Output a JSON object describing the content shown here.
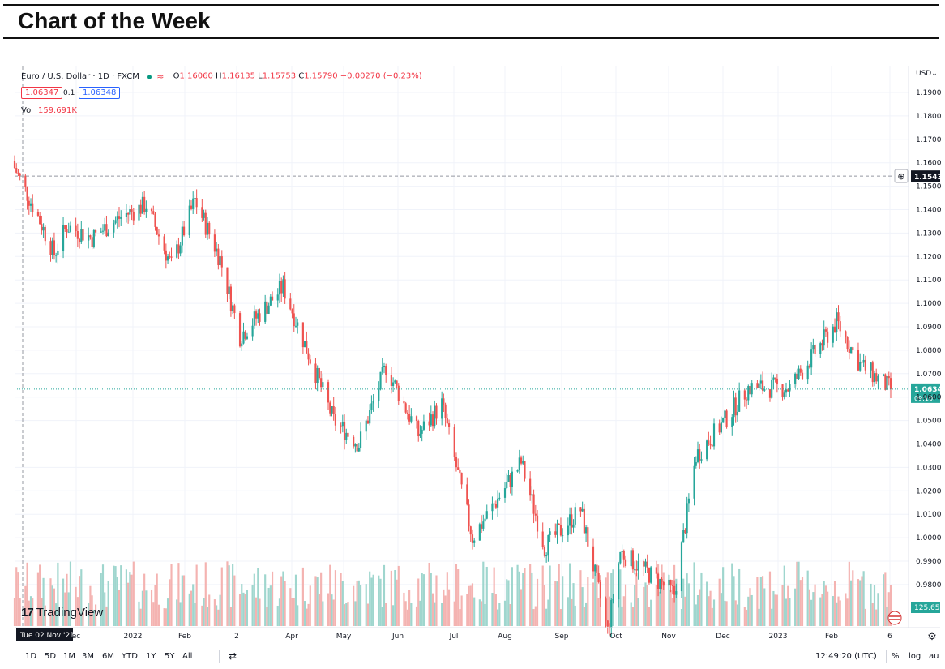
{
  "page_title": "Chart of the Week",
  "symbol": {
    "name": "Euro / U.S. Dollar · 1D · FXCM",
    "ohlc": {
      "o": "1.16060",
      "h": "1.16135",
      "l": "1.15753",
      "c": "1.15790",
      "chg": "−0.00270 (−0.23%)"
    },
    "bid": "1.06347",
    "spread": "0.1",
    "ask": "1.06348",
    "vol_label": "Vol",
    "vol_value": "159.691K"
  },
  "currency": "USD",
  "price_axis": {
    "min": 0.97,
    "max": 1.19,
    "ticks": [
      "1.1900",
      "1.1800",
      "1.1700",
      "1.1600",
      "1.1500",
      "1.1400",
      "1.1300",
      "1.1200",
      "1.1100",
      "1.1000",
      "1.0900",
      "1.0800",
      "1.0700",
      "1.0600",
      "1.0500",
      "1.0400",
      "1.0300",
      "1.0200",
      "1.0100",
      "1.0000",
      "0.9900",
      "0.9800"
    ]
  },
  "crosshair": {
    "price": "1.1543",
    "date": "Tue 02 Nov '21",
    "price_value": 1.1543
  },
  "last_price": {
    "price": "1.0634",
    "countdown": "09:10:",
    "value": 1.0634
  },
  "volume_tag": "125.65",
  "time_axis": [
    "ec",
    "2022",
    "Feb",
    "2",
    "Apr",
    "May",
    "Jun",
    "Jul",
    "Aug",
    "Sep",
    "Oct",
    "Nov",
    "Dec",
    "2023",
    "Feb",
    "6"
  ],
  "chart_data": {
    "type": "candlestick",
    "x": [
      "2021-11-02",
      "2021-11-15",
      "2021-11-24",
      "2021-12-01",
      "2021-12-15",
      "2021-12-31",
      "2022-01-14",
      "2022-01-28",
      "2022-02-10",
      "2022-02-24",
      "2022-03-07",
      "2022-03-31",
      "2022-04-28",
      "2022-05-12",
      "2022-05-27",
      "2022-06-14",
      "2022-06-27",
      "2022-07-14",
      "2022-08-10",
      "2022-08-23",
      "2022-09-12",
      "2022-09-27",
      "2022-10-04",
      "2022-10-21",
      "2022-11-03",
      "2022-11-15",
      "2022-12-01",
      "2022-12-14",
      "2023-01-06",
      "2023-02-01",
      "2023-02-14",
      "2023-03-03"
    ],
    "close": [
      1.1579,
      1.137,
      1.121,
      1.133,
      1.128,
      1.137,
      1.142,
      1.116,
      1.144,
      1.119,
      1.086,
      1.107,
      1.05,
      1.04,
      1.073,
      1.044,
      1.057,
      1.0,
      1.032,
      0.996,
      1.012,
      0.96,
      0.994,
      0.984,
      0.976,
      1.035,
      1.05,
      1.064,
      1.064,
      1.092,
      1.074,
      1.0634
    ],
    "ylim": [
      0.97,
      1.19
    ],
    "xlabel": "",
    "ylabel": ""
  },
  "watermark": "TradingView",
  "bottom_bar": {
    "ranges": [
      "1D",
      "5D",
      "1M",
      "3M",
      "6M",
      "YTD",
      "1Y",
      "5Y",
      "All"
    ],
    "clock": "12:49:20 (UTC)",
    "percent": "%",
    "log": "log",
    "auto": "au"
  },
  "colors": {
    "up": "#26a69a",
    "down": "#ef5350",
    "up_vol": "#9fd6ce",
    "down_vol": "#f4b3b1"
  }
}
